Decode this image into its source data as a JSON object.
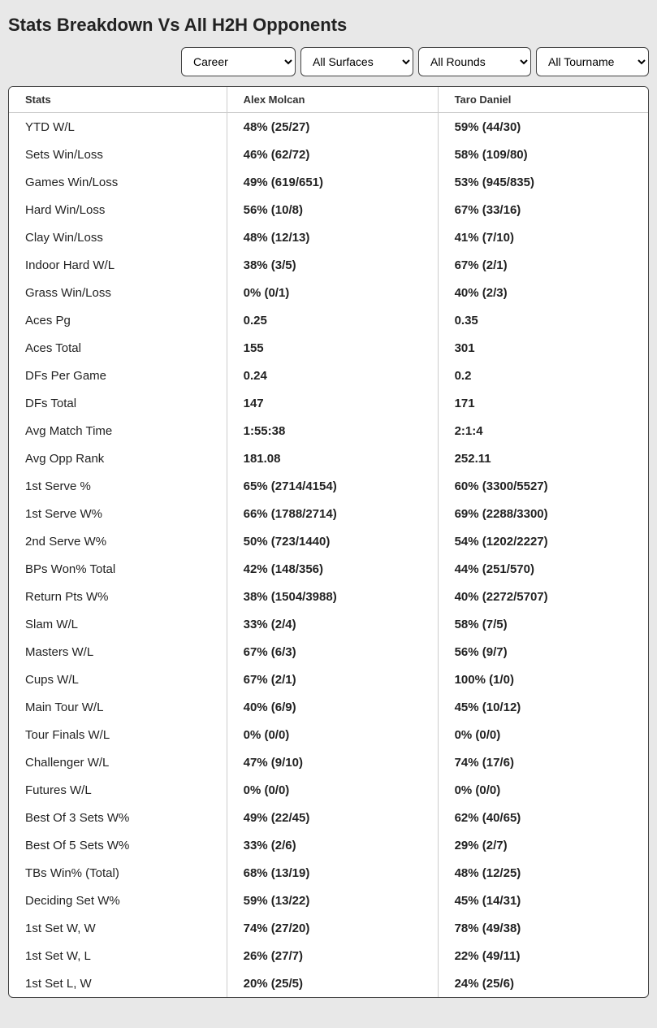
{
  "title": "Stats Breakdown Vs All H2H Opponents",
  "filters": {
    "period": "Career",
    "surface": "All Surfaces",
    "round": "All Rounds",
    "tournament": "All Tournaments"
  },
  "columns": [
    "Stats",
    "Alex Molcan",
    "Taro Daniel"
  ],
  "rows": [
    {
      "stat": "YTD W/L",
      "p1": "48% (25/27)",
      "p2": "59% (44/30)"
    },
    {
      "stat": "Sets Win/Loss",
      "p1": "46% (62/72)",
      "p2": "58% (109/80)"
    },
    {
      "stat": "Games Win/Loss",
      "p1": "49% (619/651)",
      "p2": "53% (945/835)"
    },
    {
      "stat": "Hard Win/Loss",
      "p1": "56% (10/8)",
      "p2": "67% (33/16)"
    },
    {
      "stat": "Clay Win/Loss",
      "p1": "48% (12/13)",
      "p2": "41% (7/10)"
    },
    {
      "stat": "Indoor Hard W/L",
      "p1": "38% (3/5)",
      "p2": "67% (2/1)"
    },
    {
      "stat": "Grass Win/Loss",
      "p1": "0% (0/1)",
      "p2": "40% (2/3)"
    },
    {
      "stat": "Aces Pg",
      "p1": "0.25",
      "p2": "0.35"
    },
    {
      "stat": "Aces Total",
      "p1": "155",
      "p2": "301"
    },
    {
      "stat": "DFs Per Game",
      "p1": "0.24",
      "p2": "0.2"
    },
    {
      "stat": "DFs Total",
      "p1": "147",
      "p2": "171"
    },
    {
      "stat": "Avg Match Time",
      "p1": "1:55:38",
      "p2": "2:1:4"
    },
    {
      "stat": "Avg Opp Rank",
      "p1": "181.08",
      "p2": "252.11"
    },
    {
      "stat": "1st Serve %",
      "p1": "65% (2714/4154)",
      "p2": "60% (3300/5527)"
    },
    {
      "stat": "1st Serve W%",
      "p1": "66% (1788/2714)",
      "p2": "69% (2288/3300)"
    },
    {
      "stat": "2nd Serve W%",
      "p1": "50% (723/1440)",
      "p2": "54% (1202/2227)"
    },
    {
      "stat": "BPs Won% Total",
      "p1": "42% (148/356)",
      "p2": "44% (251/570)"
    },
    {
      "stat": "Return Pts W%",
      "p1": "38% (1504/3988)",
      "p2": "40% (2272/5707)"
    },
    {
      "stat": "Slam W/L",
      "p1": "33% (2/4)",
      "p2": "58% (7/5)"
    },
    {
      "stat": "Masters W/L",
      "p1": "67% (6/3)",
      "p2": "56% (9/7)"
    },
    {
      "stat": "Cups W/L",
      "p1": "67% (2/1)",
      "p2": "100% (1/0)"
    },
    {
      "stat": "Main Tour W/L",
      "p1": "40% (6/9)",
      "p2": "45% (10/12)"
    },
    {
      "stat": "Tour Finals W/L",
      "p1": "0% (0/0)",
      "p2": "0% (0/0)"
    },
    {
      "stat": "Challenger W/L",
      "p1": "47% (9/10)",
      "p2": "74% (17/6)"
    },
    {
      "stat": "Futures W/L",
      "p1": "0% (0/0)",
      "p2": "0% (0/0)"
    },
    {
      "stat": "Best Of 3 Sets W%",
      "p1": "49% (22/45)",
      "p2": "62% (40/65)"
    },
    {
      "stat": "Best Of 5 Sets W%",
      "p1": "33% (2/6)",
      "p2": "29% (2/7)"
    },
    {
      "stat": "TBs Win% (Total)",
      "p1": "68% (13/19)",
      "p2": "48% (12/25)"
    },
    {
      "stat": "Deciding Set W%",
      "p1": "59% (13/22)",
      "p2": "45% (14/31)"
    },
    {
      "stat": "1st Set W, W",
      "p1": "74% (27/20)",
      "p2": "78% (49/38)"
    },
    {
      "stat": "1st Set W, L",
      "p1": "26% (27/7)",
      "p2": "22% (49/11)"
    },
    {
      "stat": "1st Set L, W",
      "p1": "20% (25/5)",
      "p2": "24% (25/6)"
    }
  ]
}
